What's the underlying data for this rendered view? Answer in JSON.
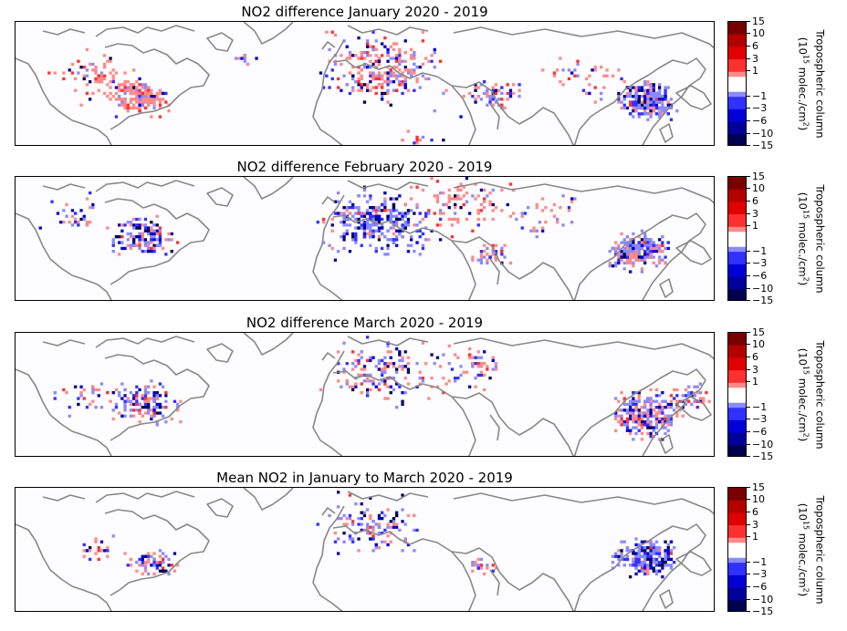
{
  "panels": [
    {
      "title": "NO2 difference January 2020 - 2019"
    },
    {
      "title": "NO2 difference February 2020 - 2019"
    },
    {
      "title": "NO2 difference March 2020 - 2019"
    },
    {
      "title": "Mean NO2 in January to March 2020 - 2019"
    }
  ],
  "colorbar": {
    "label_line1": "Tropospheric column",
    "label_line2_prefix": "(10",
    "label_line2_exp": "15",
    "label_line2_mid": " molec./cm",
    "label_line2_sup": "2",
    "label_line2_suffix": ")",
    "ticks": [
      "15",
      "10",
      "6",
      "3",
      "1",
      "−1",
      "−3",
      "−6",
      "−10",
      "−15"
    ],
    "colors": [
      "#7a0000",
      "#b30000",
      "#e00000",
      "#ff3030",
      "#ff8a8a",
      "#ffffff",
      "#8a8aff",
      "#3030ff",
      "#0000d6",
      "#00009a",
      "#000050"
    ],
    "coastline_color": "#888888",
    "background_color": "#fdfcfe"
  }
}
